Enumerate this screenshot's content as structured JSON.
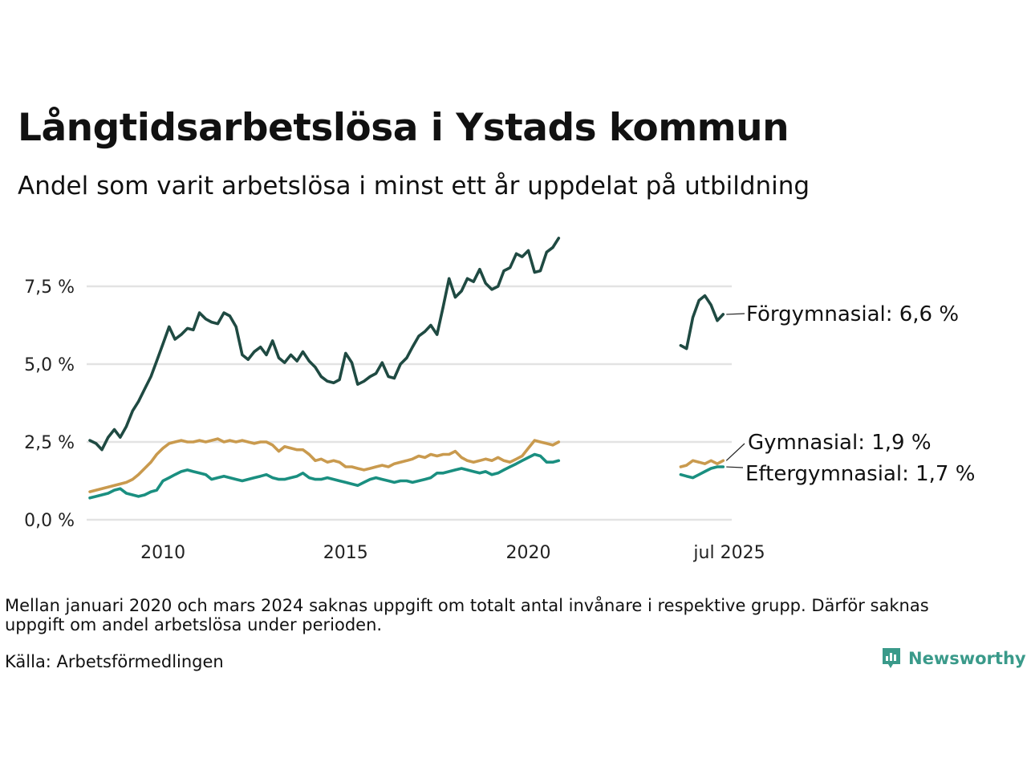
{
  "title": "Långtidsarbetslösa i Ystads kommun",
  "subtitle": "Andel som varit arbetslösa i minst ett år uppdelat på utbildning",
  "note": "Mellan januari 2020 och mars 2024 saknas uppgift om totalt antal invånare i respektive grupp. Därför saknas uppgift om andel arbetslösa under perioden.",
  "source": "Källa: Arbetsförmedlingen",
  "brand": "Newsworthy",
  "chart_data": {
    "type": "line",
    "title": "Långtidsarbetslösa i Ystads kommun",
    "xlabel": "",
    "ylabel": "",
    "ylim": [
      0,
      9.5
    ],
    "y_ticks": [
      {
        "value": 0,
        "label": "0,0 %"
      },
      {
        "value": 2.5,
        "label": "2,5 %"
      },
      {
        "value": 5,
        "label": "5,0 %"
      },
      {
        "value": 7.5,
        "label": "7,5 %"
      }
    ],
    "x_ticks": [
      {
        "value": 2010,
        "label": "2010"
      },
      {
        "value": 2015,
        "label": "2015"
      },
      {
        "value": 2020,
        "label": "2020"
      },
      {
        "value": 2025.5,
        "label": "jul 2025"
      }
    ],
    "xlim": [
      2008.0,
      2025.5
    ],
    "grid": true,
    "series": [
      {
        "name": "Förgymnasial",
        "end_label": "Förgymnasial: 6,6 %",
        "color": "#1f4a42",
        "segments": [
          [
            [
              2008.0,
              2.55
            ],
            [
              2008.17,
              2.45
            ],
            [
              2008.33,
              2.25
            ],
            [
              2008.5,
              2.65
            ],
            [
              2008.67,
              2.9
            ],
            [
              2008.83,
              2.65
            ],
            [
              2009.0,
              3.0
            ],
            [
              2009.17,
              3.5
            ],
            [
              2009.33,
              3.8
            ],
            [
              2009.5,
              4.2
            ],
            [
              2009.67,
              4.6
            ],
            [
              2009.83,
              5.1
            ],
            [
              2010.0,
              5.65
            ],
            [
              2010.17,
              6.2
            ],
            [
              2010.33,
              5.8
            ],
            [
              2010.5,
              5.95
            ],
            [
              2010.67,
              6.15
            ],
            [
              2010.83,
              6.1
            ],
            [
              2011.0,
              6.65
            ],
            [
              2011.17,
              6.45
            ],
            [
              2011.33,
              6.35
            ],
            [
              2011.5,
              6.3
            ],
            [
              2011.67,
              6.65
            ],
            [
              2011.83,
              6.55
            ],
            [
              2012.0,
              6.2
            ],
            [
              2012.17,
              5.3
            ],
            [
              2012.33,
              5.15
            ],
            [
              2012.5,
              5.4
            ],
            [
              2012.67,
              5.55
            ],
            [
              2012.83,
              5.3
            ],
            [
              2013.0,
              5.75
            ],
            [
              2013.17,
              5.2
            ],
            [
              2013.33,
              5.05
            ],
            [
              2013.5,
              5.3
            ],
            [
              2013.67,
              5.1
            ],
            [
              2013.83,
              5.4
            ],
            [
              2014.0,
              5.1
            ],
            [
              2014.17,
              4.9
            ],
            [
              2014.33,
              4.6
            ],
            [
              2014.5,
              4.45
            ],
            [
              2014.67,
              4.4
            ],
            [
              2014.83,
              4.5
            ],
            [
              2015.0,
              5.35
            ],
            [
              2015.17,
              5.05
            ],
            [
              2015.33,
              4.35
            ],
            [
              2015.5,
              4.45
            ],
            [
              2015.67,
              4.6
            ],
            [
              2015.83,
              4.7
            ],
            [
              2016.0,
              5.05
            ],
            [
              2016.17,
              4.6
            ],
            [
              2016.33,
              4.55
            ],
            [
              2016.5,
              5.0
            ],
            [
              2016.67,
              5.2
            ],
            [
              2016.83,
              5.55
            ],
            [
              2017.0,
              5.9
            ],
            [
              2017.17,
              6.05
            ],
            [
              2017.33,
              6.25
            ],
            [
              2017.5,
              5.95
            ],
            [
              2017.67,
              6.85
            ],
            [
              2017.83,
              7.75
            ],
            [
              2018.0,
              7.15
            ],
            [
              2018.17,
              7.35
            ],
            [
              2018.33,
              7.75
            ],
            [
              2018.5,
              7.65
            ],
            [
              2018.67,
              8.05
            ],
            [
              2018.83,
              7.6
            ],
            [
              2019.0,
              7.4
            ],
            [
              2019.17,
              7.5
            ],
            [
              2019.33,
              8.0
            ],
            [
              2019.5,
              8.1
            ],
            [
              2019.67,
              8.55
            ],
            [
              2019.83,
              8.45
            ],
            [
              2020.0,
              8.65
            ],
            [
              2020.17,
              7.95
            ],
            [
              2020.33,
              8.0
            ],
            [
              2020.5,
              8.6
            ],
            [
              2020.67,
              8.75
            ],
            [
              2020.83,
              9.05
            ]
          ],
          [
            [
              2024.17,
              5.6
            ],
            [
              2024.33,
              5.5
            ],
            [
              2024.5,
              6.5
            ],
            [
              2024.67,
              7.05
            ],
            [
              2024.83,
              7.2
            ],
            [
              2025.0,
              6.9
            ],
            [
              2025.17,
              6.4
            ],
            [
              2025.33,
              6.6
            ]
          ]
        ]
      },
      {
        "name": "Gymnasial",
        "end_label": "Gymnasial: 1,9 %",
        "color": "#c99a4e",
        "segments": [
          [
            [
              2008.0,
              0.9
            ],
            [
              2008.17,
              0.95
            ],
            [
              2008.33,
              1.0
            ],
            [
              2008.5,
              1.05
            ],
            [
              2008.67,
              1.1
            ],
            [
              2008.83,
              1.15
            ],
            [
              2009.0,
              1.2
            ],
            [
              2009.17,
              1.3
            ],
            [
              2009.33,
              1.45
            ],
            [
              2009.5,
              1.65
            ],
            [
              2009.67,
              1.85
            ],
            [
              2009.83,
              2.1
            ],
            [
              2010.0,
              2.3
            ],
            [
              2010.17,
              2.45
            ],
            [
              2010.33,
              2.5
            ],
            [
              2010.5,
              2.55
            ],
            [
              2010.67,
              2.5
            ],
            [
              2010.83,
              2.5
            ],
            [
              2011.0,
              2.55
            ],
            [
              2011.17,
              2.5
            ],
            [
              2011.33,
              2.55
            ],
            [
              2011.5,
              2.6
            ],
            [
              2011.67,
              2.5
            ],
            [
              2011.83,
              2.55
            ],
            [
              2012.0,
              2.5
            ],
            [
              2012.17,
              2.55
            ],
            [
              2012.33,
              2.5
            ],
            [
              2012.5,
              2.45
            ],
            [
              2012.67,
              2.5
            ],
            [
              2012.83,
              2.5
            ],
            [
              2013.0,
              2.4
            ],
            [
              2013.17,
              2.2
            ],
            [
              2013.33,
              2.35
            ],
            [
              2013.5,
              2.3
            ],
            [
              2013.67,
              2.25
            ],
            [
              2013.83,
              2.25
            ],
            [
              2014.0,
              2.1
            ],
            [
              2014.17,
              1.9
            ],
            [
              2014.33,
              1.95
            ],
            [
              2014.5,
              1.85
            ],
            [
              2014.67,
              1.9
            ],
            [
              2014.83,
              1.85
            ],
            [
              2015.0,
              1.7
            ],
            [
              2015.17,
              1.7
            ],
            [
              2015.33,
              1.65
            ],
            [
              2015.5,
              1.6
            ],
            [
              2015.67,
              1.65
            ],
            [
              2015.83,
              1.7
            ],
            [
              2016.0,
              1.75
            ],
            [
              2016.17,
              1.7
            ],
            [
              2016.33,
              1.8
            ],
            [
              2016.5,
              1.85
            ],
            [
              2016.67,
              1.9
            ],
            [
              2016.83,
              1.95
            ],
            [
              2017.0,
              2.05
            ],
            [
              2017.17,
              2.0
            ],
            [
              2017.33,
              2.1
            ],
            [
              2017.5,
              2.05
            ],
            [
              2017.67,
              2.1
            ],
            [
              2017.83,
              2.1
            ],
            [
              2018.0,
              2.2
            ],
            [
              2018.17,
              2.0
            ],
            [
              2018.33,
              1.9
            ],
            [
              2018.5,
              1.85
            ],
            [
              2018.67,
              1.9
            ],
            [
              2018.83,
              1.95
            ],
            [
              2019.0,
              1.9
            ],
            [
              2019.17,
              2.0
            ],
            [
              2019.33,
              1.9
            ],
            [
              2019.5,
              1.85
            ],
            [
              2019.67,
              1.95
            ],
            [
              2019.83,
              2.05
            ],
            [
              2020.0,
              2.3
            ],
            [
              2020.17,
              2.55
            ],
            [
              2020.33,
              2.5
            ],
            [
              2020.5,
              2.45
            ],
            [
              2020.67,
              2.4
            ],
            [
              2020.83,
              2.5
            ]
          ],
          [
            [
              2024.17,
              1.7
            ],
            [
              2024.33,
              1.75
            ],
            [
              2024.5,
              1.9
            ],
            [
              2024.67,
              1.85
            ],
            [
              2024.83,
              1.8
            ],
            [
              2025.0,
              1.9
            ],
            [
              2025.17,
              1.8
            ],
            [
              2025.33,
              1.9
            ]
          ]
        ]
      },
      {
        "name": "Eftergymnasial",
        "end_label": "Eftergymnasial: 1,7 %",
        "color": "#1a8f80",
        "segments": [
          [
            [
              2008.0,
              0.7
            ],
            [
              2008.17,
              0.75
            ],
            [
              2008.33,
              0.8
            ],
            [
              2008.5,
              0.85
            ],
            [
              2008.67,
              0.95
            ],
            [
              2008.83,
              1.0
            ],
            [
              2009.0,
              0.85
            ],
            [
              2009.17,
              0.8
            ],
            [
              2009.33,
              0.75
            ],
            [
              2009.5,
              0.8
            ],
            [
              2009.67,
              0.9
            ],
            [
              2009.83,
              0.95
            ],
            [
              2010.0,
              1.25
            ],
            [
              2010.17,
              1.35
            ],
            [
              2010.33,
              1.45
            ],
            [
              2010.5,
              1.55
            ],
            [
              2010.67,
              1.6
            ],
            [
              2010.83,
              1.55
            ],
            [
              2011.0,
              1.5
            ],
            [
              2011.17,
              1.45
            ],
            [
              2011.33,
              1.3
            ],
            [
              2011.5,
              1.35
            ],
            [
              2011.67,
              1.4
            ],
            [
              2011.83,
              1.35
            ],
            [
              2012.0,
              1.3
            ],
            [
              2012.17,
              1.25
            ],
            [
              2012.33,
              1.3
            ],
            [
              2012.5,
              1.35
            ],
            [
              2012.67,
              1.4
            ],
            [
              2012.83,
              1.45
            ],
            [
              2013.0,
              1.35
            ],
            [
              2013.17,
              1.3
            ],
            [
              2013.33,
              1.3
            ],
            [
              2013.5,
              1.35
            ],
            [
              2013.67,
              1.4
            ],
            [
              2013.83,
              1.5
            ],
            [
              2014.0,
              1.35
            ],
            [
              2014.17,
              1.3
            ],
            [
              2014.33,
              1.3
            ],
            [
              2014.5,
              1.35
            ],
            [
              2014.67,
              1.3
            ],
            [
              2014.83,
              1.25
            ],
            [
              2015.0,
              1.2
            ],
            [
              2015.17,
              1.15
            ],
            [
              2015.33,
              1.1
            ],
            [
              2015.5,
              1.2
            ],
            [
              2015.67,
              1.3
            ],
            [
              2015.83,
              1.35
            ],
            [
              2016.0,
              1.3
            ],
            [
              2016.17,
              1.25
            ],
            [
              2016.33,
              1.2
            ],
            [
              2016.5,
              1.25
            ],
            [
              2016.67,
              1.25
            ],
            [
              2016.83,
              1.2
            ],
            [
              2017.0,
              1.25
            ],
            [
              2017.17,
              1.3
            ],
            [
              2017.33,
              1.35
            ],
            [
              2017.5,
              1.5
            ],
            [
              2017.67,
              1.5
            ],
            [
              2017.83,
              1.55
            ],
            [
              2018.0,
              1.6
            ],
            [
              2018.17,
              1.65
            ],
            [
              2018.33,
              1.6
            ],
            [
              2018.5,
              1.55
            ],
            [
              2018.67,
              1.5
            ],
            [
              2018.83,
              1.55
            ],
            [
              2019.0,
              1.45
            ],
            [
              2019.17,
              1.5
            ],
            [
              2019.33,
              1.6
            ],
            [
              2019.5,
              1.7
            ],
            [
              2019.67,
              1.8
            ],
            [
              2019.83,
              1.9
            ],
            [
              2020.0,
              2.0
            ],
            [
              2020.17,
              2.1
            ],
            [
              2020.33,
              2.05
            ],
            [
              2020.5,
              1.85
            ],
            [
              2020.67,
              1.85
            ],
            [
              2020.83,
              1.9
            ]
          ],
          [
            [
              2024.17,
              1.45
            ],
            [
              2024.33,
              1.4
            ],
            [
              2024.5,
              1.35
            ],
            [
              2024.67,
              1.45
            ],
            [
              2024.83,
              1.55
            ],
            [
              2025.0,
              1.65
            ],
            [
              2025.17,
              1.7
            ],
            [
              2025.33,
              1.7
            ]
          ]
        ]
      }
    ]
  }
}
